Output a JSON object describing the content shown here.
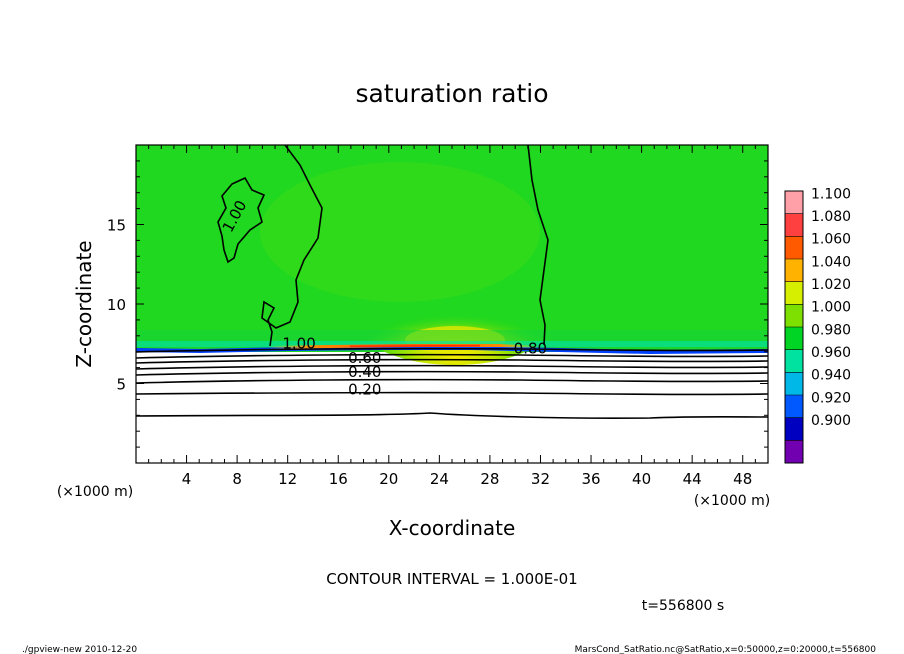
{
  "chart_data": {
    "type": "heatmap",
    "title": "saturation ratio",
    "xlabel": "X-coordinate",
    "ylabel": "Z-coordinate",
    "x_unit": "(×1000 m)",
    "y_unit": "(×1000 m)",
    "xlim": [
      0,
      50
    ],
    "ylim": [
      0,
      20
    ],
    "x_ticks": [
      "4",
      "8",
      "12",
      "16",
      "20",
      "24",
      "28",
      "32",
      "36",
      "40",
      "44",
      "48"
    ],
    "y_ticks": [
      "5",
      "10",
      "15"
    ],
    "colorbar": {
      "levels": [
        "1.100",
        "1.080",
        "1.060",
        "1.040",
        "1.020",
        "1.000",
        "0.980",
        "0.960",
        "0.940",
        "0.920",
        "0.900"
      ],
      "colors": [
        "#ff9fa8",
        "#ff4040",
        "#ff5a00",
        "#ffb300",
        "#d6ee00",
        "#7ee000",
        "#00d424",
        "#00e2a0",
        "#00b8e8",
        "#0058ff",
        "#0000c0",
        "#7000b0"
      ]
    },
    "contour_labels": [
      {
        "text": "1.00",
        "x": 7.8,
        "z": 15.2,
        "rotate": -62
      },
      {
        "text": "1.00",
        "x": 12.9,
        "z": 7.2,
        "rotate": 0
      },
      {
        "text": "0.80",
        "x": 31.2,
        "z": 6.9,
        "rotate": 0
      },
      {
        "text": "0.60",
        "x": 18.1,
        "z": 6.3,
        "rotate": 0
      },
      {
        "text": "0.40",
        "x": 18.1,
        "z": 5.4,
        "rotate": 0
      },
      {
        "text": "0.20",
        "x": 18.1,
        "z": 4.3,
        "rotate": 0
      }
    ],
    "contour_interval_text": "CONTOUR INTERVAL = 1.000E-01",
    "time_text": "t=556800  s"
  },
  "footer": {
    "left": "./gpview-new   2010-12-20",
    "right": "MarsCond_SatRatio.nc@SatRatio,x=0:50000,z=0:20000,t=556800"
  }
}
